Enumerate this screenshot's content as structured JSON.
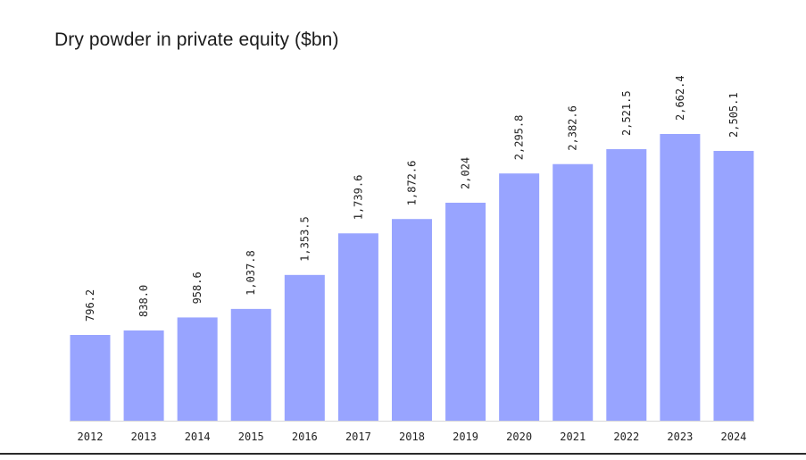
{
  "chart_data": {
    "type": "bar",
    "title": "Dry powder in private equity ($bn)",
    "xlabel": "",
    "ylabel": "",
    "categories": [
      "2012",
      "2013",
      "2014",
      "2015",
      "2016",
      "2017",
      "2018",
      "2019",
      "2020",
      "2021",
      "2022",
      "2023",
      "2024"
    ],
    "values": [
      796.2,
      838.0,
      958.6,
      1037.8,
      1353.5,
      1739.6,
      1872.6,
      2024,
      2295.8,
      2382.6,
      2521.5,
      2662.4,
      2505.1
    ],
    "data_labels": [
      "796.2",
      "838.0",
      "958.6",
      "1,037.8",
      "1,353.5",
      "1,739.6",
      "1,872.6",
      "2,024",
      "2,295.8",
      "2,382.6",
      "2,521.5",
      "2,662.4",
      "2,505.1"
    ],
    "ylim": [
      0,
      2662.4
    ],
    "grid": false,
    "legend": "none",
    "bar_color": "#98a4ff",
    "axis_color": "#d8d8d8"
  }
}
